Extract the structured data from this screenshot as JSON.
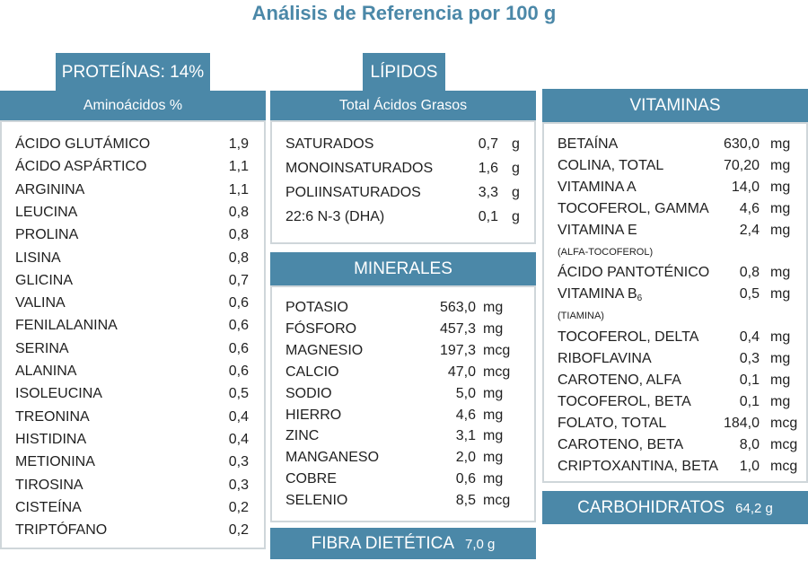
{
  "title": "Análisis de Referencia por 100 g",
  "proteinas": {
    "tab": "PROTEÍNAS: 14%",
    "subheader": "Aminoácidos %",
    "items": [
      {
        "name": "ÁCIDO GLUTÁMICO",
        "value": "1,9"
      },
      {
        "name": "ÁCIDO ASPÁRTICO",
        "value": "1,1"
      },
      {
        "name": "ARGININA",
        "value": "1,1"
      },
      {
        "name": "LEUCINA",
        "value": "0,8"
      },
      {
        "name": "PROLINA",
        "value": "0,8"
      },
      {
        "name": "LISINA",
        "value": "0,8"
      },
      {
        "name": "GLICINA",
        "value": "0,7"
      },
      {
        "name": "VALINA",
        "value": "0,6"
      },
      {
        "name": "FENILALANINA",
        "value": "0,6"
      },
      {
        "name": "SERINA",
        "value": "0,6"
      },
      {
        "name": "ALANINA",
        "value": "0,6"
      },
      {
        "name": "ISOLEUCINA",
        "value": "0,5"
      },
      {
        "name": "TREONINA",
        "value": "0,4"
      },
      {
        "name": "HISTIDINA",
        "value": "0,4"
      },
      {
        "name": "METIONINA",
        "value": "0,3"
      },
      {
        "name": "TIROSINA",
        "value": "0,3"
      },
      {
        "name": "CISTEÍNA",
        "value": "0,2"
      },
      {
        "name": "TRIPTÓFANO",
        "value": "0,2"
      }
    ]
  },
  "lipidos": {
    "tab": "LÍPIDOS",
    "subheader": "Total Ácidos Grasos",
    "items": [
      {
        "name": "SATURADOS",
        "value": "0,7",
        "unit": "g"
      },
      {
        "name": "MONOINSATURADOS",
        "value": "1,6",
        "unit": "g"
      },
      {
        "name": "POLIINSATURADOS",
        "value": "3,3",
        "unit": "g"
      },
      {
        "name": "22:6 N-3 (DHA)",
        "value": "0,1",
        "unit": "g"
      }
    ]
  },
  "minerales": {
    "header": "MINERALES",
    "items": [
      {
        "name": "POTASIO",
        "value": "563,0",
        "unit": "mg"
      },
      {
        "name": "FÓSFORO",
        "value": "457,3",
        "unit": "mg"
      },
      {
        "name": "MAGNESIO",
        "value": "197,3",
        "unit": "mcg"
      },
      {
        "name": "CALCIO",
        "value": "47,0",
        "unit": "mcg"
      },
      {
        "name": "SODIO",
        "value": "5,0",
        "unit": "mg"
      },
      {
        "name": "HIERRO",
        "value": "4,6",
        "unit": "mg"
      },
      {
        "name": "ZINC",
        "value": "3,1",
        "unit": "mg"
      },
      {
        "name": "MANGANESO",
        "value": "2,0",
        "unit": "mg"
      },
      {
        "name": "COBRE",
        "value": "0,6",
        "unit": "mg"
      },
      {
        "name": "SELENIO",
        "value": "8,5",
        "unit": "mcg"
      }
    ]
  },
  "fibra": {
    "label": "FIBRA DIETÉTICA",
    "value": "7,0 g"
  },
  "vitaminas": {
    "header": "VITAMINAS",
    "items": [
      {
        "name": "BETAÍNA",
        "value": "630,0",
        "unit": "mg"
      },
      {
        "name": "COLINA, TOTAL",
        "value": "70,20",
        "unit": "mg"
      },
      {
        "name": "VITAMINA A",
        "value": "14,0",
        "unit": "mg"
      },
      {
        "name": "TOCOFEROL, GAMMA",
        "value": "4,6",
        "unit": "mg"
      },
      {
        "name": "VITAMINA E",
        "value": "2,4",
        "unit": "mg"
      },
      {
        "note": "(ALFA-TOCOFEROL)"
      },
      {
        "name": "ÁCIDO PANTOTÉNICO",
        "value": "0,8",
        "unit": "mg"
      },
      {
        "name": "VITAMINA B",
        "subscript": "6",
        "value": "0,5",
        "unit": "mg"
      },
      {
        "note": "(TIAMINA)"
      },
      {
        "name": "TOCOFEROL, DELTA",
        "value": "0,4",
        "unit": "mg"
      },
      {
        "name": "RIBOFLAVINA",
        "value": "0,3",
        "unit": "mg"
      },
      {
        "name": "CAROTENO, ALFA",
        "value": "0,1",
        "unit": "mg"
      },
      {
        "name": "TOCOFEROL, BETA",
        "value": "0,1",
        "unit": "mg"
      },
      {
        "name": "FOLATO, TOTAL",
        "value": "184,0",
        "unit": "mcg"
      },
      {
        "name": "CAROTENO, BETA",
        "value": "8,0",
        "unit": "mcg"
      },
      {
        "name": "CRIPTOXANTINA, BETA",
        "value": "1,0",
        "unit": "mcg"
      }
    ]
  },
  "carbohidratos": {
    "label": "CARBOHIDRATOS",
    "value": "64,2 g"
  },
  "colors": {
    "accent": "#4b88a8",
    "border": "#cfd6da",
    "text": "#1f1f1f"
  }
}
